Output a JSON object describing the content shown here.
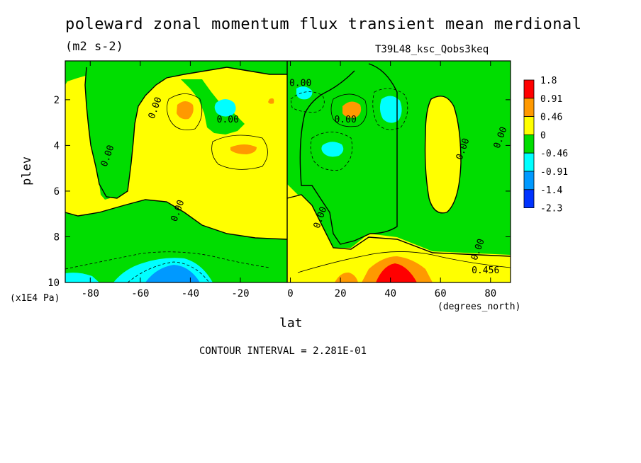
{
  "chart_data": {
    "type": "heatmap",
    "title": "poleward zonal momentum flux transient mean merdional",
    "units": "(m2 s-2)",
    "experiment": "T39L48_ksc_Qobs3keq",
    "xlabel": "lat",
    "xunits": "(degrees_north)",
    "ylabel": "plev",
    "yunits": "(x1E4 Pa)",
    "xlim": [
      -90,
      88
    ],
    "ylim": [
      10,
      0.3
    ],
    "x_ticks": [
      -80,
      -60,
      -40,
      -20,
      0,
      20,
      40,
      60,
      80
    ],
    "y_ticks": [
      2,
      4,
      6,
      8,
      10
    ],
    "contour_interval": "CONTOUR INTERVAL = 2.281E-01",
    "colorbar": {
      "levels": [
        "1.8",
        "0.91",
        "0.46",
        "0",
        "-0.46",
        "-0.91",
        "-1.4",
        "-2.3"
      ],
      "colors": [
        "#ff0000",
        "#ff9900",
        "#ffff00",
        "#00dd00",
        "#00ffff",
        "#0099ff",
        "#0033ff"
      ]
    },
    "contour_labels": [
      {
        "text": "0.00",
        "lat": -72,
        "plev": 4.5
      },
      {
        "text": "0.00",
        "lat": -53,
        "plev": 2.4
      },
      {
        "text": "0.00",
        "lat": -25,
        "plev": 3.0
      },
      {
        "text": "0.00",
        "lat": 4,
        "plev": 1.4
      },
      {
        "text": "0.00",
        "lat": 22,
        "plev": 3.0
      },
      {
        "text": "0.00",
        "lat": 70,
        "plev": 4.2
      },
      {
        "text": "0.00",
        "lat": 85,
        "plev": 3.7
      },
      {
        "text": "0.00",
        "lat": -44,
        "plev": 6.9
      },
      {
        "text": "0.00",
        "lat": 13,
        "plev": 7.2
      },
      {
        "text": "0.00",
        "lat": 76,
        "plev": 8.6
      },
      {
        "text": "0.456",
        "lat": 78,
        "plev": 9.6
      }
    ],
    "features": [
      {
        "lat": -45,
        "plev": 2.2,
        "level": "0.46"
      },
      {
        "lat": -28,
        "plev": 2.1,
        "level": "-0.46"
      },
      {
        "lat": -18,
        "plev": 4.0,
        "level": "0.46"
      },
      {
        "lat": 27,
        "plev": 2.2,
        "level": "0.46"
      },
      {
        "lat": 42,
        "plev": 2.2,
        "level": "-0.46"
      },
      {
        "lat": 18,
        "plev": 4.0,
        "level": "-0.46"
      },
      {
        "lat": 5,
        "plev": 1.8,
        "level": "-0.46"
      },
      {
        "lat": -45,
        "plev": 9.6,
        "level": "-0.91"
      },
      {
        "lat": 43,
        "plev": 9.6,
        "level": "1.8"
      },
      {
        "lat": 25,
        "plev": 9.8,
        "level": "0.46"
      }
    ]
  }
}
